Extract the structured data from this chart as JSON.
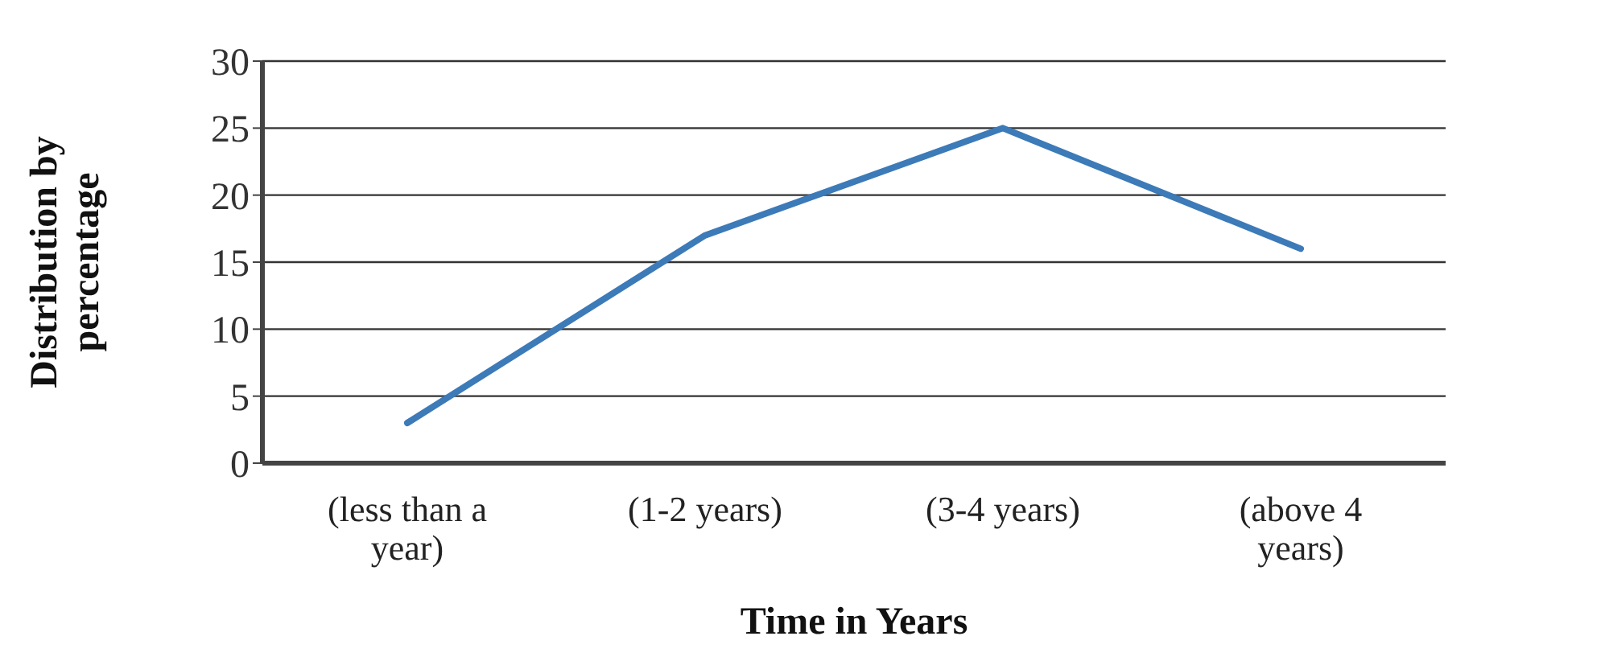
{
  "chart_data": {
    "type": "line",
    "xlabel": "Time in Years",
    "ylabel": "Distribution by percentage",
    "categories": [
      "(less than a year)",
      "(1-2 years)",
      "(3-4 years)",
      "(above 4 years)"
    ],
    "series": [
      {
        "color": "#3c7ab8",
        "values": [
          3,
          17,
          25,
          16
        ]
      }
    ],
    "ylim": [
      0,
      30
    ],
    "yticks": [
      0,
      5,
      10,
      15,
      20,
      25,
      30
    ],
    "grid": "y",
    "marker": "none",
    "line_style": "solid"
  }
}
